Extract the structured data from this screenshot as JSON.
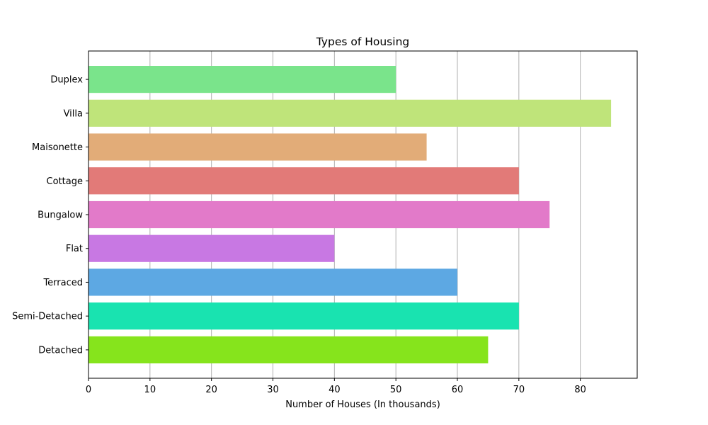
{
  "chart_data": {
    "type": "bar",
    "orientation": "horizontal",
    "title": "Types of Housing",
    "xlabel": "Number of Houses (In thousands)",
    "ylabel": "",
    "categories": [
      "Detached",
      "Semi-Detached",
      "Terraced",
      "Flat",
      "Bungalow",
      "Cottage",
      "Maisonette",
      "Villa",
      "Duplex"
    ],
    "values": [
      65,
      70,
      60,
      40,
      75,
      70,
      55,
      85,
      50
    ],
    "colors": [
      "#86e41c",
      "#19e3b0",
      "#5da8e3",
      "#c878e3",
      "#e27ac9",
      "#e27a78",
      "#e2ac78",
      "#bfe47a",
      "#7ae48b"
    ],
    "xlim": [
      0,
      89.25
    ],
    "xticks": [
      0,
      10,
      20,
      30,
      40,
      50,
      60,
      70,
      80
    ],
    "grid": "vertical"
  }
}
